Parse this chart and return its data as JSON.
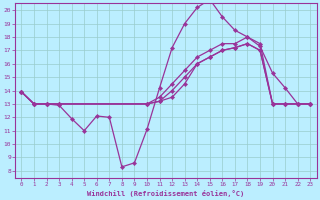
{
  "xlabel": "Windchill (Refroidissement éolien,°C)",
  "bg_color": "#bbeeff",
  "grid_color": "#99cccc",
  "line_color": "#993399",
  "xlim": [
    -0.5,
    23.5
  ],
  "ylim": [
    7.5,
    20.5
  ],
  "xticks": [
    0,
    1,
    2,
    3,
    4,
    5,
    6,
    7,
    8,
    9,
    10,
    11,
    12,
    13,
    14,
    15,
    16,
    17,
    18,
    19,
    20,
    21,
    22,
    23
  ],
  "yticks": [
    8,
    9,
    10,
    11,
    12,
    13,
    14,
    15,
    16,
    17,
    18,
    19,
    20
  ],
  "line1_x": [
    0,
    1,
    2,
    3,
    4,
    5,
    6,
    7,
    8,
    9,
    10,
    11,
    12,
    13,
    14,
    15,
    16,
    17,
    18,
    19,
    20,
    21,
    22,
    23
  ],
  "line1_y": [
    13.9,
    13.0,
    13.0,
    12.9,
    11.9,
    11.0,
    12.1,
    12.0,
    8.3,
    8.6,
    11.1,
    14.2,
    17.2,
    19.0,
    20.2,
    20.8,
    19.5,
    18.5,
    18.0,
    17.3,
    15.3,
    14.2,
    13.0,
    13.0
  ],
  "line2_x": [
    0,
    1,
    2,
    3,
    10,
    11,
    12,
    13,
    14,
    15,
    16,
    17,
    18,
    19,
    20,
    21,
    22,
    23
  ],
  "line2_y": [
    13.9,
    13.0,
    13.0,
    13.0,
    13.0,
    13.2,
    13.5,
    14.5,
    16.0,
    16.5,
    17.0,
    17.2,
    17.5,
    17.0,
    13.0,
    13.0,
    13.0,
    13.0
  ],
  "line3_x": [
    0,
    1,
    2,
    3,
    10,
    11,
    12,
    13,
    14,
    15,
    16,
    17,
    18,
    19,
    20,
    21,
    22,
    23
  ],
  "line3_y": [
    13.9,
    13.0,
    13.0,
    13.0,
    13.0,
    13.2,
    14.0,
    15.0,
    16.0,
    16.5,
    17.0,
    17.2,
    17.5,
    17.0,
    13.0,
    13.0,
    13.0,
    13.0
  ],
  "line4_x": [
    0,
    1,
    2,
    3,
    10,
    11,
    12,
    13,
    14,
    15,
    16,
    17,
    18,
    19,
    20,
    21,
    22,
    23
  ],
  "line4_y": [
    13.9,
    13.0,
    13.0,
    13.0,
    13.0,
    13.5,
    14.5,
    15.5,
    16.5,
    17.0,
    17.5,
    17.5,
    18.0,
    17.5,
    13.0,
    13.0,
    13.0,
    13.0
  ]
}
